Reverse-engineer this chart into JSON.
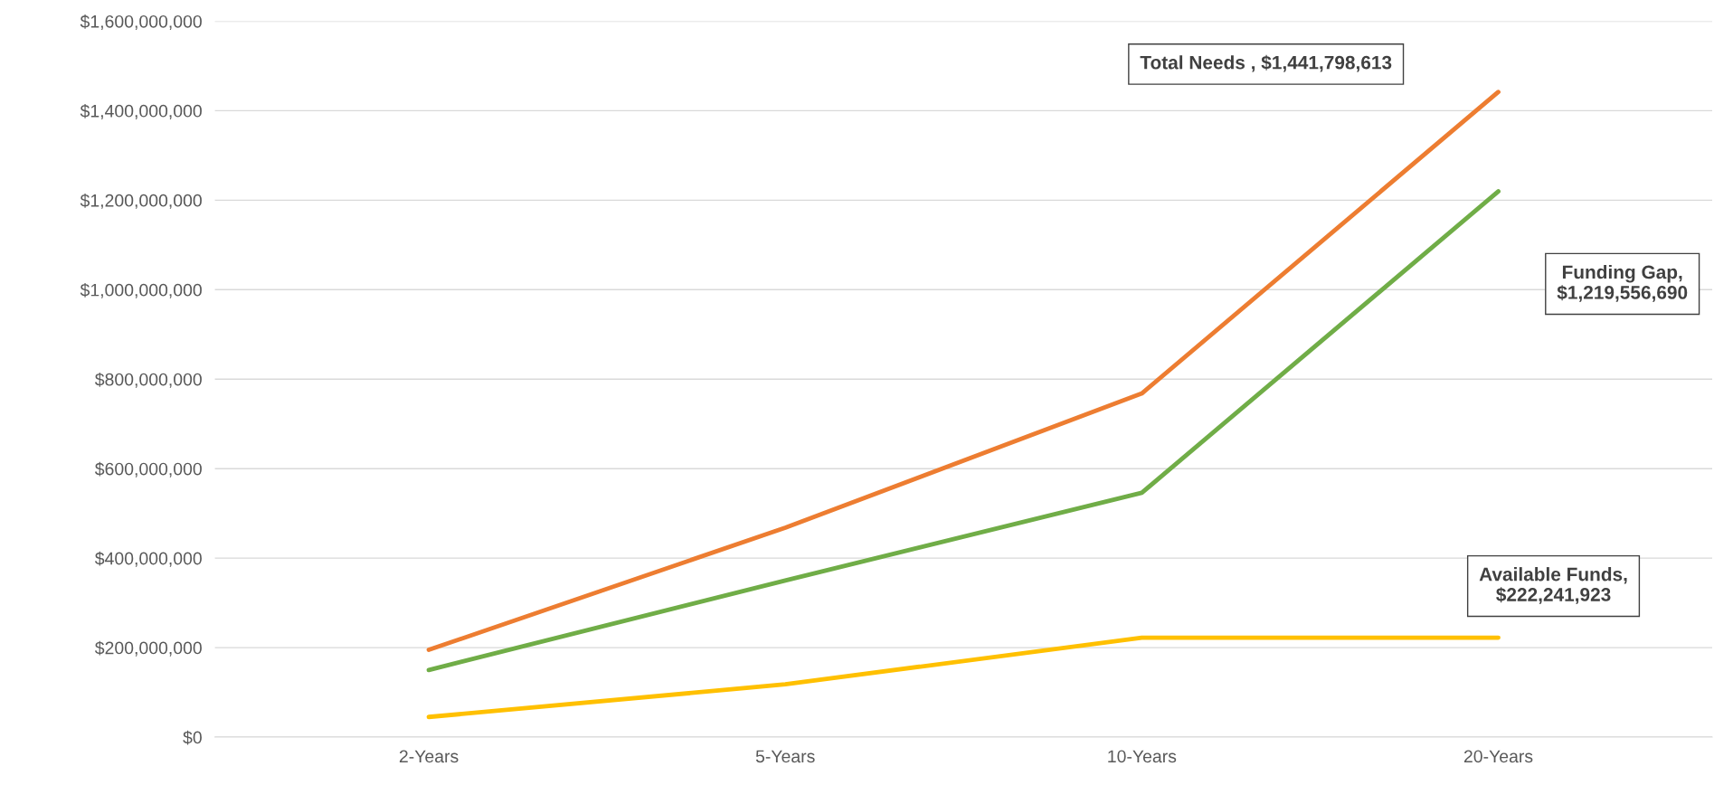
{
  "chart_data": {
    "type": "line",
    "categories": [
      "2-Years",
      "5-Years",
      "10-Years",
      "20-Years"
    ],
    "series": [
      {
        "color": "#ed7d31",
        "values": [
          195000000,
          468000000,
          768000000,
          1441798613
        ]
      },
      {
        "color": "#70ad47",
        "values": [
          150000000,
          350000000,
          546000000,
          1219556690
        ]
      },
      {
        "color": "#ffc000",
        "values": [
          45000000,
          118000000,
          222241923,
          222241923
        ]
      }
    ],
    "ylim": [
      0,
      1600000000
    ],
    "yticks": [
      {
        "value": 0,
        "label": "$0"
      },
      {
        "value": 200000000,
        "label": "$200,000,000"
      },
      {
        "value": 400000000,
        "label": "$400,000,000"
      },
      {
        "value": 600000000,
        "label": "$600,000,000"
      },
      {
        "value": 800000000,
        "label": "$800,000,000"
      },
      {
        "value": 1000000000,
        "label": "$1,000,000,000"
      },
      {
        "value": 1200000000,
        "label": "$1,200,000,000"
      },
      {
        "value": 1400000000,
        "label": "$1,400,000,000"
      },
      {
        "value": 1600000000,
        "label": "$1,600,000,000"
      }
    ],
    "grid": "y",
    "marker": "none",
    "line_style": "solid",
    "annotations": [
      "Total Needs , $1,441,798,613",
      "Funding Gap,\n$1,219,556,690",
      "Available Funds,\n$222,241,923"
    ]
  }
}
